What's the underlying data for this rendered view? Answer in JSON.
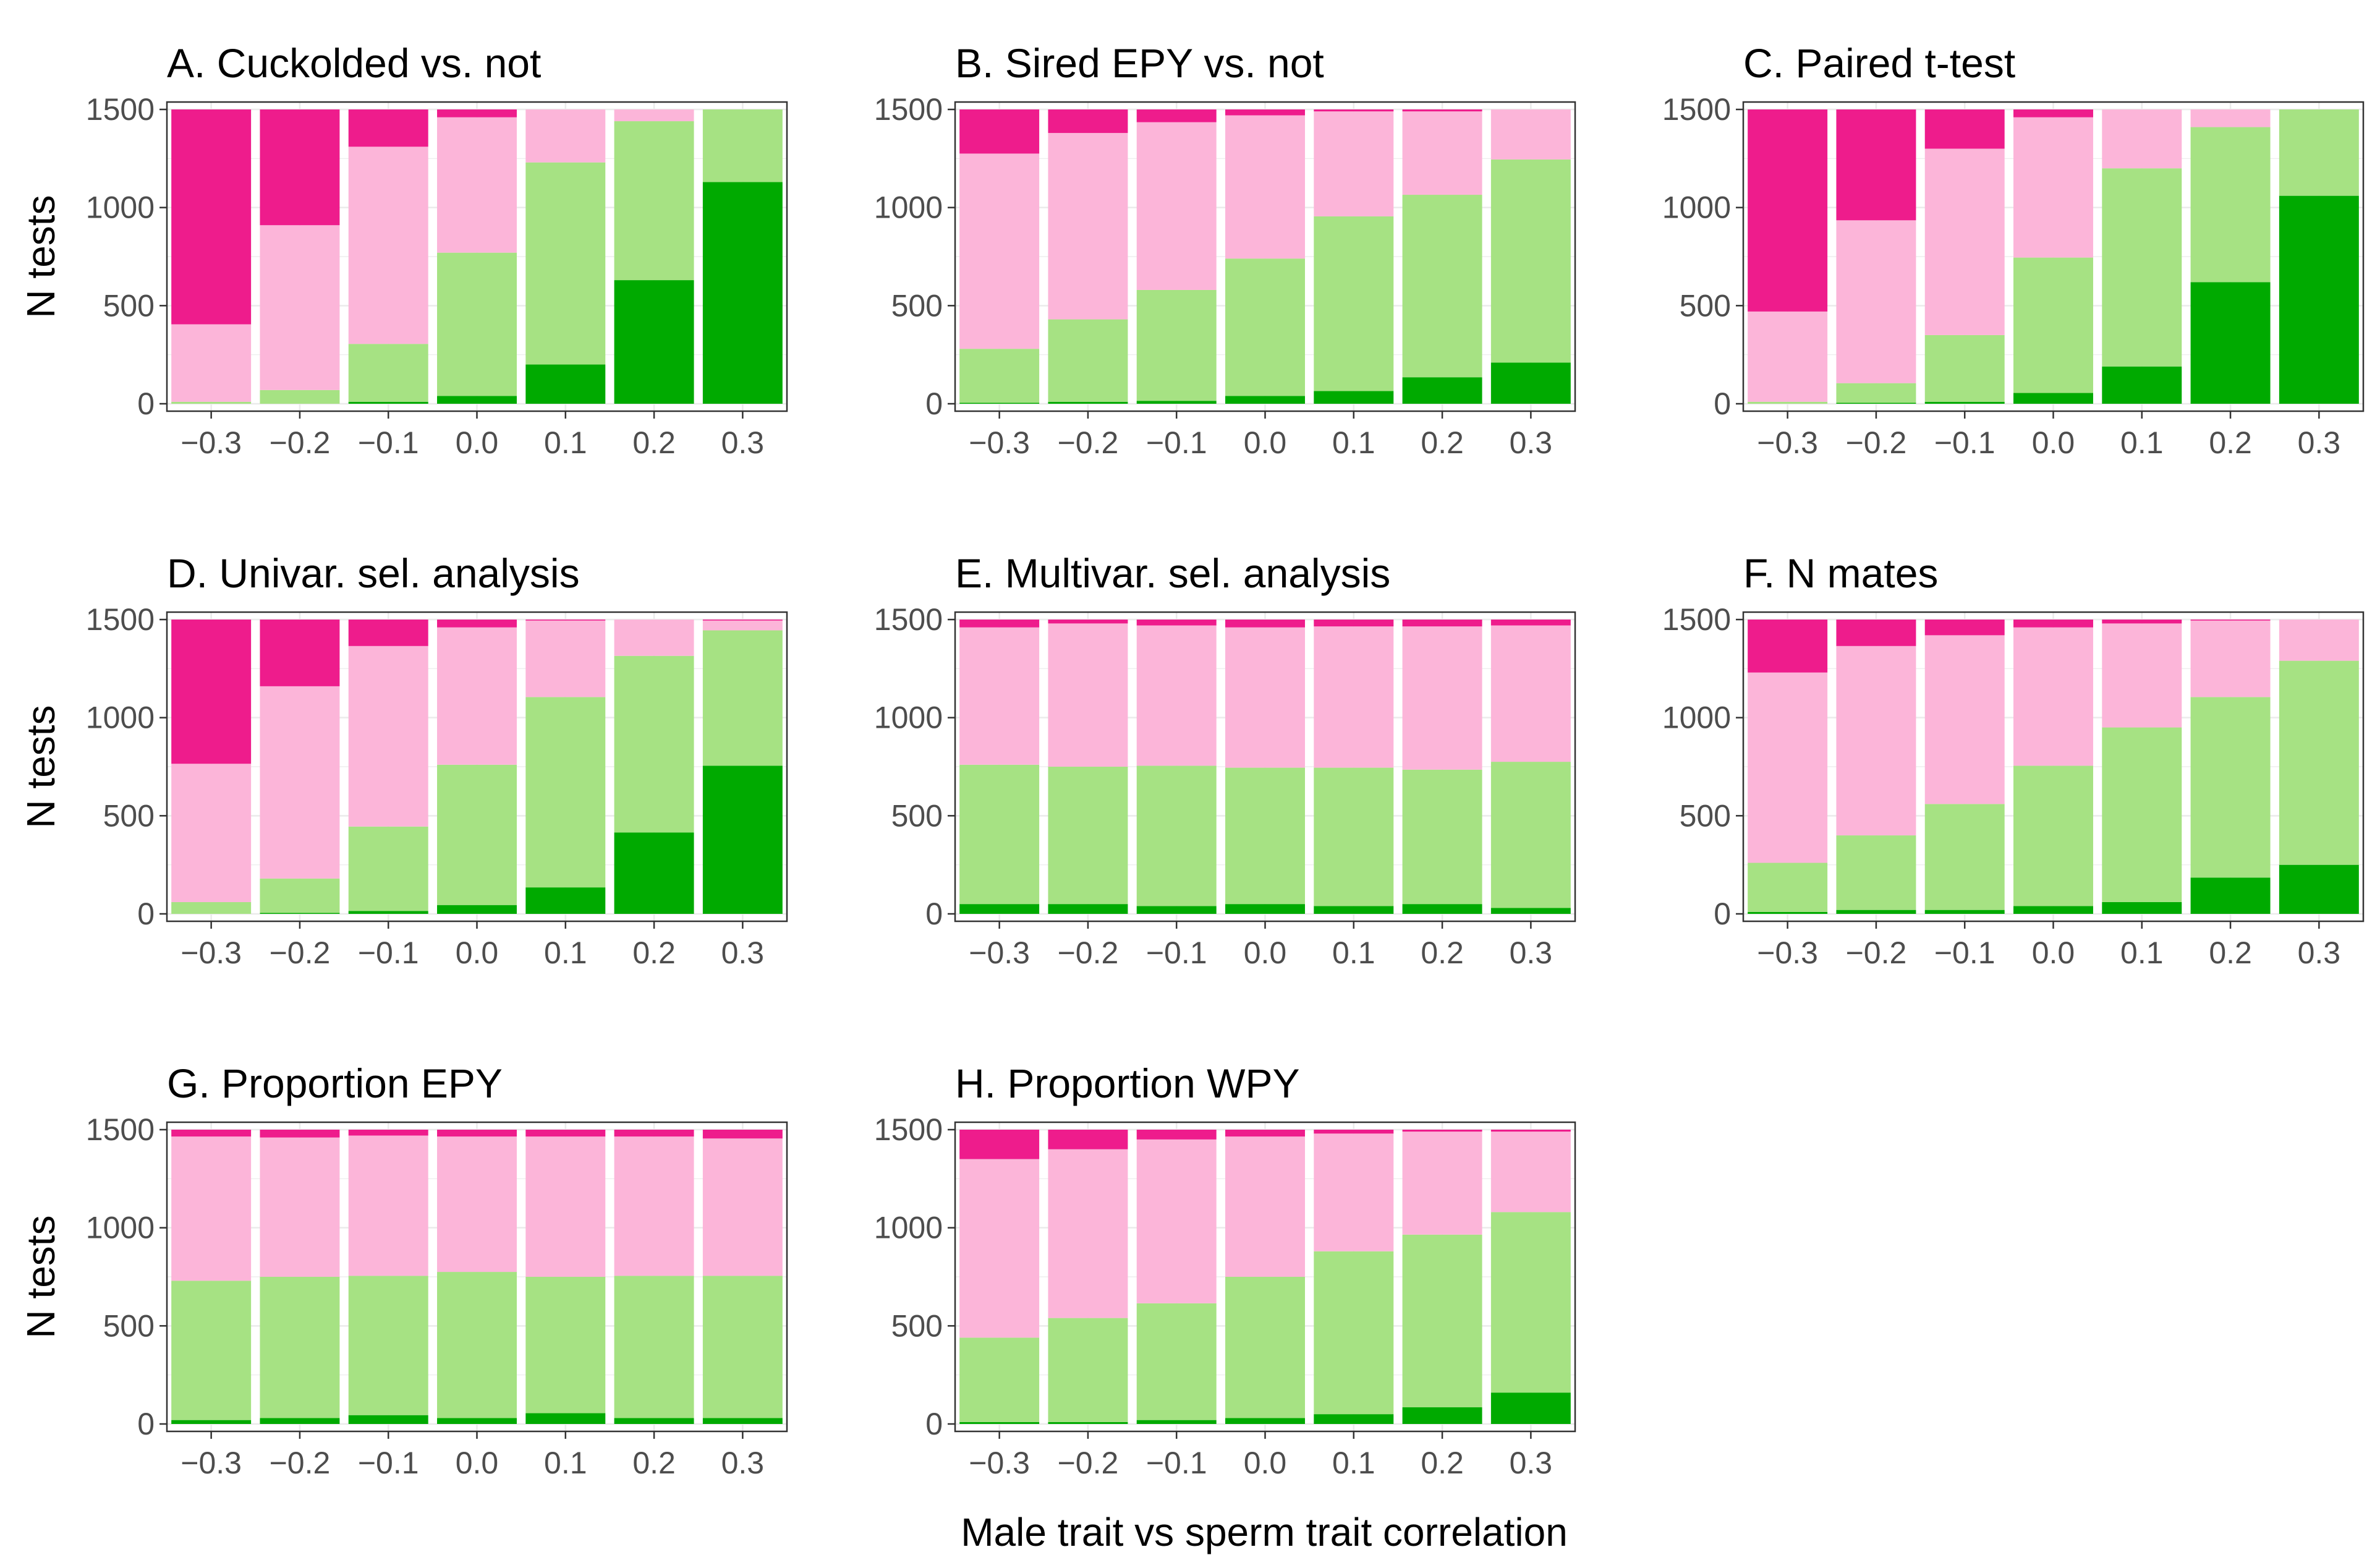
{
  "figure": {
    "xlabel": "Male trait vs sperm trait correlation",
    "ylabel": "N tests",
    "colors": {
      "dark_pink": "#ee1c8c",
      "light_pink": "#fcb5d9",
      "light_green": "#a6e283",
      "dark_green": "#00aa00"
    }
  },
  "chart_data": [
    {
      "type": "bar",
      "stacked": true,
      "title": "A. Cuckolded vs. not",
      "categories": [
        "−0.3",
        "−0.2",
        "−0.1",
        "0.0",
        "0.1",
        "0.2",
        "0.3"
      ],
      "ylim": [
        0,
        1500
      ],
      "yticks": [
        "0",
        "500",
        "1000",
        "1500"
      ],
      "series": [
        {
          "name": "dark_green",
          "values": [
            0,
            0,
            10,
            40,
            200,
            630,
            1130
          ]
        },
        {
          "name": "light_green",
          "values": [
            10,
            70,
            295,
            730,
            1030,
            810,
            370
          ]
        },
        {
          "name": "light_pink",
          "values": [
            395,
            840,
            1005,
            690,
            270,
            60,
            0
          ]
        },
        {
          "name": "dark_pink",
          "values": [
            1095,
            590,
            190,
            40,
            0,
            0,
            0
          ]
        }
      ]
    },
    {
      "type": "bar",
      "stacked": true,
      "title": "B. Sired EPY vs. not",
      "categories": [
        "−0.3",
        "−0.2",
        "−0.1",
        "0.0",
        "0.1",
        "0.2",
        "0.3"
      ],
      "ylim": [
        0,
        1500
      ],
      "yticks": [
        "0",
        "500",
        "1000",
        "1500"
      ],
      "series": [
        {
          "name": "dark_green",
          "values": [
            5,
            10,
            15,
            40,
            65,
            135,
            210
          ]
        },
        {
          "name": "light_green",
          "values": [
            275,
            420,
            565,
            700,
            890,
            930,
            1035
          ]
        },
        {
          "name": "light_pink",
          "values": [
            995,
            950,
            855,
            730,
            535,
            425,
            255
          ]
        },
        {
          "name": "dark_pink",
          "values": [
            225,
            120,
            65,
            30,
            10,
            10,
            0
          ]
        }
      ]
    },
    {
      "type": "bar",
      "stacked": true,
      "title": "C. Paired t-test",
      "categories": [
        "−0.3",
        "−0.2",
        "−0.1",
        "0.0",
        "0.1",
        "0.2",
        "0.3"
      ],
      "ylim": [
        0,
        1500
      ],
      "yticks": [
        "0",
        "500",
        "1000",
        "1500"
      ],
      "series": [
        {
          "name": "dark_green",
          "values": [
            0,
            5,
            10,
            55,
            190,
            620,
            1060
          ]
        },
        {
          "name": "light_green",
          "values": [
            10,
            100,
            340,
            690,
            1010,
            790,
            440
          ]
        },
        {
          "name": "light_pink",
          "values": [
            460,
            830,
            950,
            715,
            300,
            90,
            0
          ]
        },
        {
          "name": "dark_pink",
          "values": [
            1030,
            565,
            200,
            40,
            0,
            0,
            0
          ]
        }
      ]
    },
    {
      "type": "bar",
      "stacked": true,
      "title": "D. Univar. sel. analysis",
      "categories": [
        "−0.3",
        "−0.2",
        "−0.1",
        "0.0",
        "0.1",
        "0.2",
        "0.3"
      ],
      "ylim": [
        0,
        1500
      ],
      "yticks": [
        "0",
        "500",
        "1000",
        "1500"
      ],
      "series": [
        {
          "name": "dark_green",
          "values": [
            0,
            5,
            15,
            45,
            135,
            415,
            755
          ]
        },
        {
          "name": "light_green",
          "values": [
            60,
            175,
            430,
            715,
            970,
            900,
            690
          ]
        },
        {
          "name": "light_pink",
          "values": [
            705,
            980,
            920,
            700,
            390,
            185,
            50
          ]
        },
        {
          "name": "dark_pink",
          "values": [
            735,
            340,
            135,
            40,
            5,
            0,
            5
          ]
        }
      ]
    },
    {
      "type": "bar",
      "stacked": true,
      "title": "E. Multivar. sel. analysis",
      "categories": [
        "−0.3",
        "−0.2",
        "−0.1",
        "0.0",
        "0.1",
        "0.2",
        "0.3"
      ],
      "ylim": [
        0,
        1500
      ],
      "yticks": [
        "0",
        "500",
        "1000",
        "1500"
      ],
      "series": [
        {
          "name": "dark_green",
          "values": [
            50,
            50,
            40,
            50,
            40,
            50,
            30
          ]
        },
        {
          "name": "light_green",
          "values": [
            710,
            700,
            715,
            695,
            705,
            685,
            745
          ]
        },
        {
          "name": "light_pink",
          "values": [
            700,
            730,
            715,
            715,
            720,
            730,
            695
          ]
        },
        {
          "name": "dark_pink",
          "values": [
            40,
            20,
            30,
            40,
            35,
            35,
            30
          ]
        }
      ]
    },
    {
      "type": "bar",
      "stacked": true,
      "title": "F. N mates",
      "categories": [
        "−0.3",
        "−0.2",
        "−0.1",
        "0.0",
        "0.1",
        "0.2",
        "0.3"
      ],
      "ylim": [
        0,
        1500
      ],
      "yticks": [
        "0",
        "500",
        "1000",
        "1500"
      ],
      "series": [
        {
          "name": "dark_green",
          "values": [
            10,
            20,
            20,
            40,
            60,
            185,
            250
          ]
        },
        {
          "name": "light_green",
          "values": [
            250,
            380,
            540,
            715,
            890,
            920,
            1040
          ]
        },
        {
          "name": "light_pink",
          "values": [
            970,
            965,
            860,
            705,
            530,
            390,
            210
          ]
        },
        {
          "name": "dark_pink",
          "values": [
            270,
            135,
            80,
            40,
            20,
            5,
            0
          ]
        }
      ]
    },
    {
      "type": "bar",
      "stacked": true,
      "title": "G. Proportion EPY",
      "categories": [
        "−0.3",
        "−0.2",
        "−0.1",
        "0.0",
        "0.1",
        "0.2",
        "0.3"
      ],
      "ylim": [
        0,
        1500
      ],
      "yticks": [
        "0",
        "500",
        "1000",
        "1500"
      ],
      "series": [
        {
          "name": "dark_green",
          "values": [
            20,
            30,
            45,
            30,
            55,
            30,
            30
          ]
        },
        {
          "name": "light_green",
          "values": [
            710,
            720,
            710,
            745,
            695,
            725,
            725
          ]
        },
        {
          "name": "light_pink",
          "values": [
            735,
            710,
            715,
            690,
            715,
            710,
            700
          ]
        },
        {
          "name": "dark_pink",
          "values": [
            35,
            40,
            30,
            35,
            35,
            35,
            45
          ]
        }
      ]
    },
    {
      "type": "bar",
      "stacked": true,
      "title": "H. Proportion WPY",
      "categories": [
        "−0.3",
        "−0.2",
        "−0.1",
        "0.0",
        "0.1",
        "0.2",
        "0.3"
      ],
      "ylim": [
        0,
        1500
      ],
      "yticks": [
        "0",
        "500",
        "1000",
        "1500"
      ],
      "series": [
        {
          "name": "dark_green",
          "values": [
            10,
            10,
            20,
            30,
            50,
            85,
            160
          ]
        },
        {
          "name": "light_green",
          "values": [
            430,
            530,
            595,
            720,
            830,
            880,
            920
          ]
        },
        {
          "name": "light_pink",
          "values": [
            910,
            860,
            835,
            715,
            600,
            525,
            410
          ]
        },
        {
          "name": "dark_pink",
          "values": [
            150,
            100,
            50,
            35,
            20,
            10,
            10
          ]
        }
      ]
    }
  ]
}
